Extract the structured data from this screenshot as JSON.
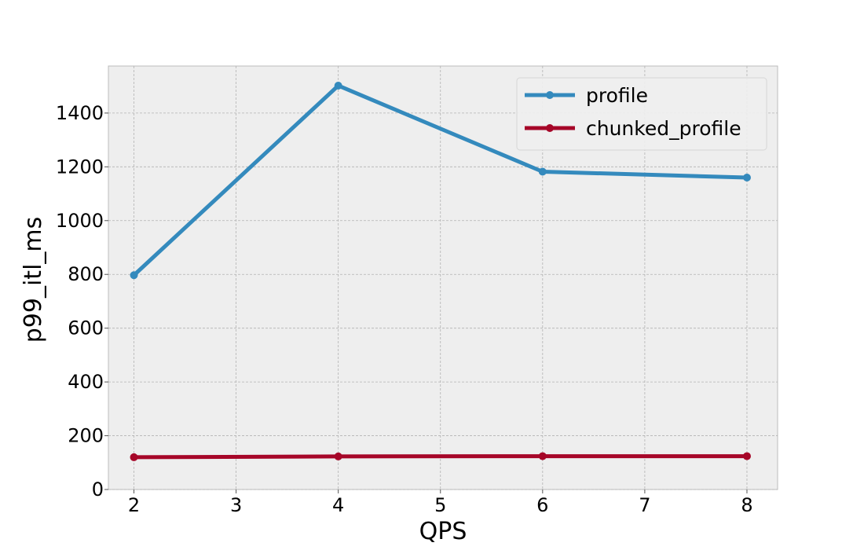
{
  "chart_data": {
    "type": "line",
    "title": "",
    "xlabel": "QPS",
    "ylabel": "p99_itl_ms",
    "xlim": [
      1.75,
      8.3
    ],
    "ylim": [
      0,
      1575
    ],
    "xticks": [
      2,
      3,
      4,
      5,
      6,
      7,
      8
    ],
    "yticks": [
      0,
      200,
      400,
      600,
      800,
      1000,
      1200,
      1400
    ],
    "grid": true,
    "legend_position": "top-right",
    "x": [
      2,
      4,
      6,
      8
    ],
    "series": [
      {
        "name": "profile",
        "color": "#348ABD",
        "values": [
          797,
          1502,
          1182,
          1160
        ]
      },
      {
        "name": "chunked_profile",
        "color": "#A60628",
        "values": [
          120,
          123,
          124,
          124
        ]
      }
    ]
  }
}
